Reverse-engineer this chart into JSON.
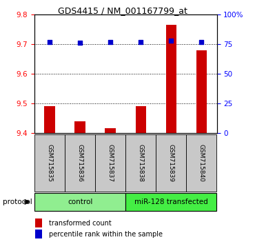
{
  "title": "GDS4415 / NM_001167799_at",
  "samples": [
    "GSM715835",
    "GSM715836",
    "GSM715837",
    "GSM715838",
    "GSM715839",
    "GSM715840"
  ],
  "transformed_counts": [
    9.49,
    9.44,
    9.415,
    9.49,
    9.765,
    9.68
  ],
  "percentile_ranks": [
    77,
    76,
    77,
    77,
    78,
    77
  ],
  "ylim_left": [
    9.4,
    9.8
  ],
  "ylim_right": [
    0,
    100
  ],
  "yticks_left": [
    9.4,
    9.5,
    9.6,
    9.7,
    9.8
  ],
  "yticks_right": [
    0,
    25,
    50,
    75,
    100
  ],
  "ytick_labels_right": [
    "0",
    "25",
    "50",
    "75",
    "100%"
  ],
  "bar_color": "#CC0000",
  "dot_color": "#0000CC",
  "bar_width": 0.35,
  "protocol_label": "protocol",
  "legend_bar_label": "transformed count",
  "legend_dot_label": "percentile rank within the sample",
  "bg_color_control": "#90EE90",
  "bg_color_transfected": "#44EE44",
  "sample_box_color": "#C8C8C8"
}
